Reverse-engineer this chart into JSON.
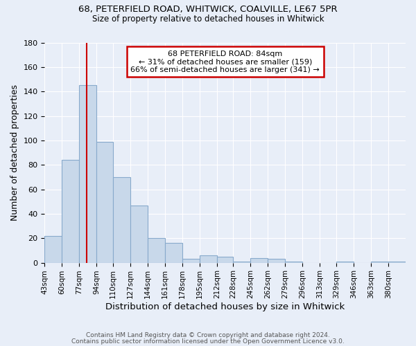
{
  "title1": "68, PETERFIELD ROAD, WHITWICK, COALVILLE, LE67 5PR",
  "title2": "Size of property relative to detached houses in Whitwick",
  "xlabel": "Distribution of detached houses by size in Whitwick",
  "ylabel": "Number of detached properties",
  "bar_labels": [
    "43sqm",
    "60sqm",
    "77sqm",
    "94sqm",
    "110sqm",
    "127sqm",
    "144sqm",
    "161sqm",
    "178sqm",
    "195sqm",
    "212sqm",
    "228sqm",
    "245sqm",
    "262sqm",
    "279sqm",
    "296sqm",
    "313sqm",
    "329sqm",
    "346sqm",
    "363sqm",
    "380sqm"
  ],
  "bar_heights": [
    22,
    84,
    145,
    99,
    70,
    47,
    20,
    16,
    3,
    6,
    5,
    1,
    4,
    3,
    1,
    0,
    0,
    1,
    0,
    1,
    1
  ],
  "bar_color": "#c8d8ea",
  "bar_edgecolor": "#88aacc",
  "background_color": "#e8eef8",
  "grid_color": "#ffffff",
  "red_line_x": 84,
  "bin_edges": [
    43,
    60,
    77,
    94,
    110,
    127,
    144,
    161,
    178,
    195,
    212,
    228,
    245,
    262,
    279,
    296,
    313,
    329,
    346,
    363,
    380
  ],
  "annotation_text": "68 PETERFIELD ROAD: 84sqm\n← 31% of detached houses are smaller (159)\n66% of semi-detached houses are larger (341) →",
  "annotation_box_color": "#ffffff",
  "annotation_box_edgecolor": "#cc0000",
  "red_line_color": "#cc0000",
  "ylim": [
    0,
    180
  ],
  "yticks": [
    0,
    20,
    40,
    60,
    80,
    100,
    120,
    140,
    160,
    180
  ],
  "footnote1": "Contains HM Land Registry data © Crown copyright and database right 2024.",
  "footnote2": "Contains public sector information licensed under the Open Government Licence v3.0."
}
